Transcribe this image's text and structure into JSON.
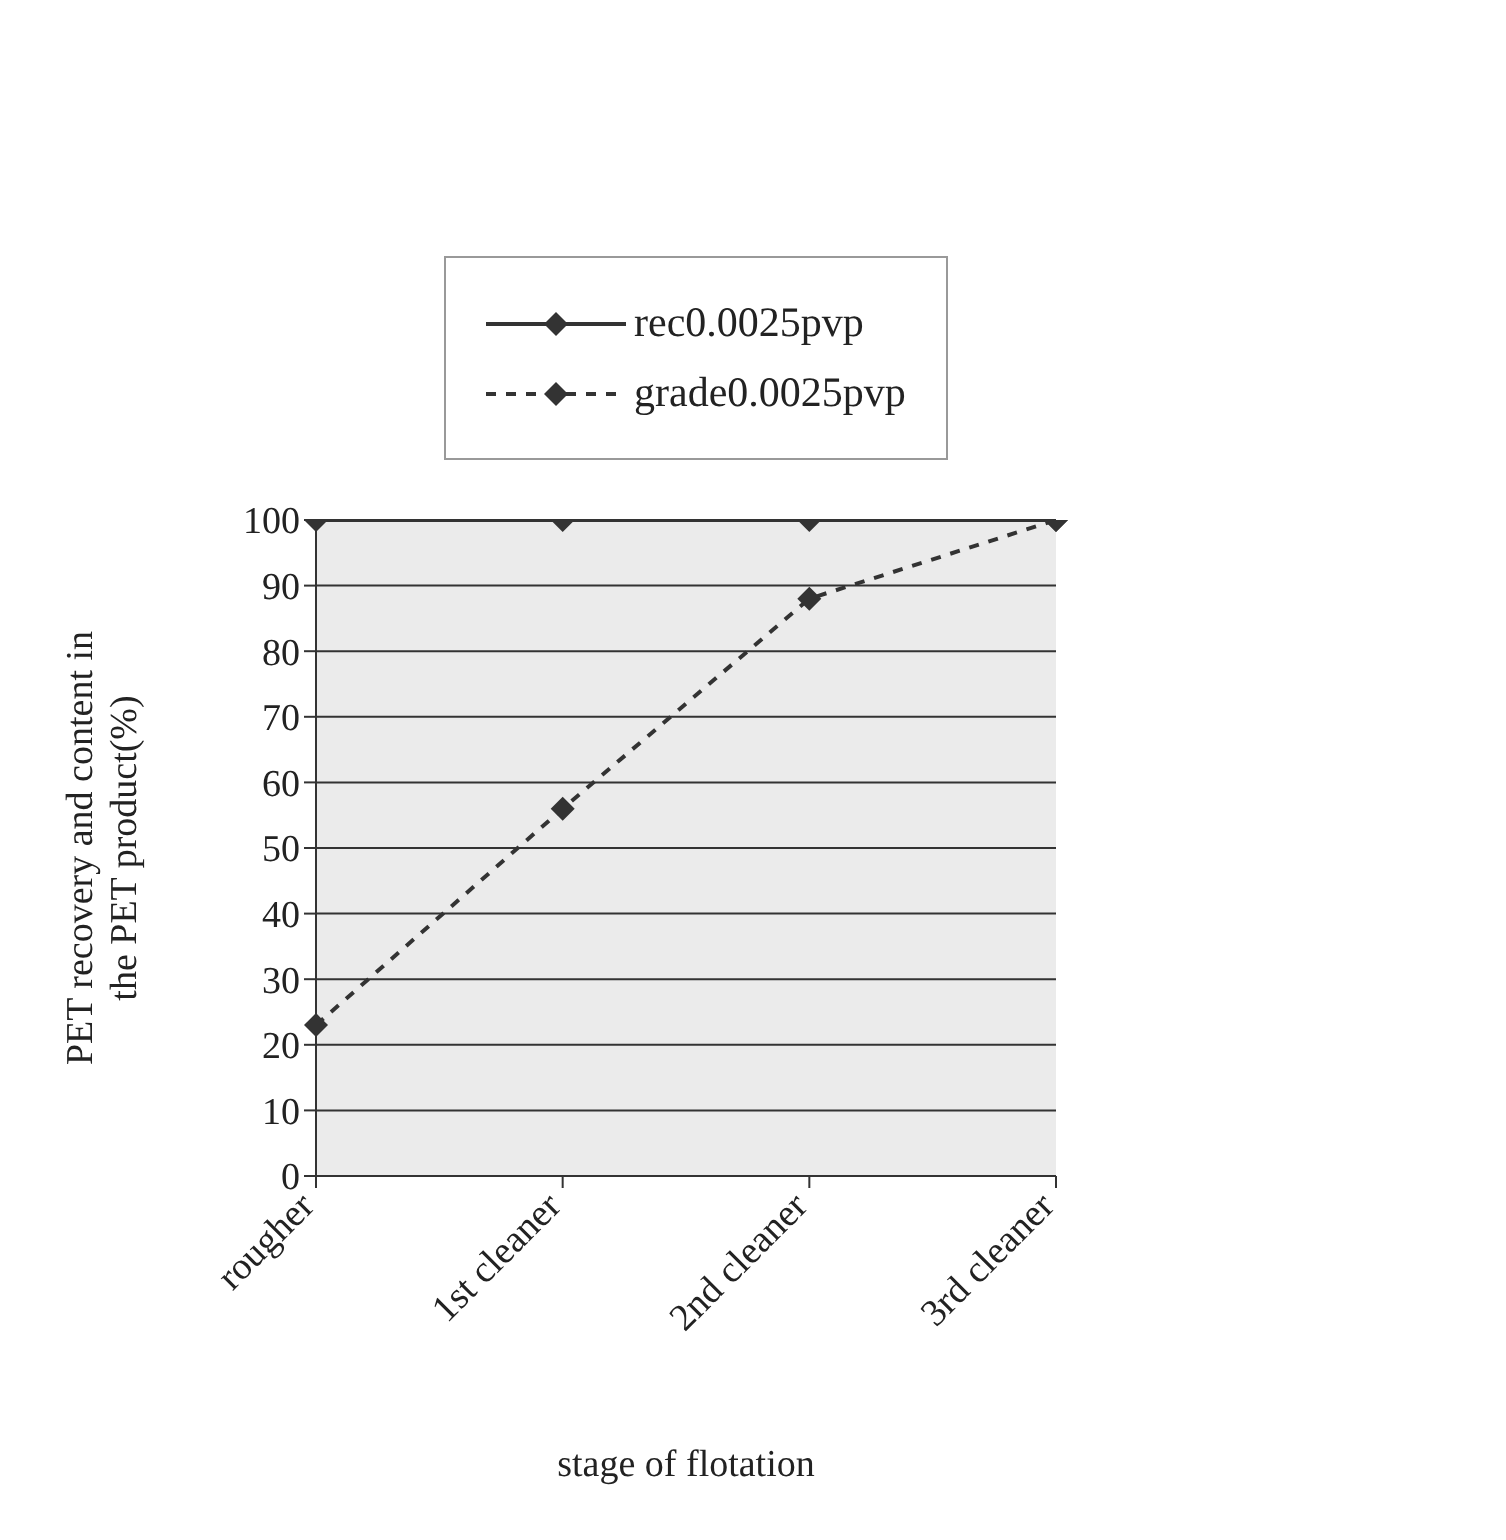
{
  "chart_data": {
    "type": "line",
    "xlabel": "stage of flotation",
    "ylabel": "PET recovery and content in the PET product(%)",
    "categories": [
      "rougher",
      "1st cleaner",
      "2nd cleaner",
      "3rd cleaner"
    ],
    "series": [
      {
        "name": "rec0.0025pvp",
        "color": "#333333",
        "values": [
          100,
          100,
          100,
          100
        ],
        "line_style": "solid",
        "marker": "diamond"
      },
      {
        "name": "grade0.0025pvp",
        "color": "#333333",
        "values": [
          23,
          56,
          88,
          100
        ],
        "line_style": "dashed",
        "marker": "diamond"
      }
    ],
    "ylim": [
      0,
      100
    ],
    "yticks": [
      0,
      10,
      20,
      30,
      40,
      50,
      60,
      70,
      80,
      90,
      100
    ],
    "grid": "y",
    "legend": "top"
  }
}
